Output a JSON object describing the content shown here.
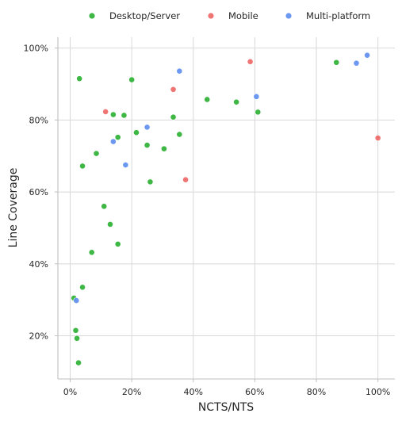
{
  "chart_data": {
    "type": "scatter",
    "xlabel": "NCTS/NTS",
    "ylabel": "Line Coverage",
    "xlim": [
      -0.04,
      1.055
    ],
    "ylim": [
      0.08,
      1.03
    ],
    "x_ticks": [
      {
        "value": 0.0,
        "label": "0%"
      },
      {
        "value": 0.2,
        "label": "20%"
      },
      {
        "value": 0.4,
        "label": "40%"
      },
      {
        "value": 0.6,
        "label": "60%"
      },
      {
        "value": 0.8,
        "label": "80%"
      },
      {
        "value": 1.0,
        "label": "100%"
      }
    ],
    "y_ticks": [
      {
        "value": 0.2,
        "label": "20%"
      },
      {
        "value": 0.4,
        "label": "40%"
      },
      {
        "value": 0.6,
        "label": "60%"
      },
      {
        "value": 0.8,
        "label": "80%"
      },
      {
        "value": 1.0,
        "label": "100%"
      }
    ],
    "grid": true,
    "legend_position": "top-center",
    "series": [
      {
        "name": "Desktop/Server",
        "color": "#2eb135",
        "points": [
          {
            "x": 0.03,
            "y": 0.915
          },
          {
            "x": 0.2,
            "y": 0.912
          },
          {
            "x": 0.14,
            "y": 0.815
          },
          {
            "x": 0.175,
            "y": 0.813
          },
          {
            "x": 0.335,
            "y": 0.808
          },
          {
            "x": 0.445,
            "y": 0.857
          },
          {
            "x": 0.54,
            "y": 0.85
          },
          {
            "x": 0.61,
            "y": 0.822
          },
          {
            "x": 0.865,
            "y": 0.96
          },
          {
            "x": 0.215,
            "y": 0.765
          },
          {
            "x": 0.155,
            "y": 0.752
          },
          {
            "x": 0.355,
            "y": 0.76
          },
          {
            "x": 0.25,
            "y": 0.73
          },
          {
            "x": 0.305,
            "y": 0.72
          },
          {
            "x": 0.085,
            "y": 0.707
          },
          {
            "x": 0.04,
            "y": 0.672
          },
          {
            "x": 0.26,
            "y": 0.628
          },
          {
            "x": 0.11,
            "y": 0.56
          },
          {
            "x": 0.13,
            "y": 0.51
          },
          {
            "x": 0.155,
            "y": 0.455
          },
          {
            "x": 0.07,
            "y": 0.432
          },
          {
            "x": 0.04,
            "y": 0.335
          },
          {
            "x": 0.012,
            "y": 0.305
          },
          {
            "x": 0.018,
            "y": 0.215
          },
          {
            "x": 0.022,
            "y": 0.193
          },
          {
            "x": 0.027,
            "y": 0.125
          }
        ]
      },
      {
        "name": "Mobile",
        "color": "#ee6868",
        "points": [
          {
            "x": 0.115,
            "y": 0.823
          },
          {
            "x": 0.335,
            "y": 0.885
          },
          {
            "x": 0.585,
            "y": 0.962
          },
          {
            "x": 0.375,
            "y": 0.634
          },
          {
            "x": 1.0,
            "y": 0.75
          }
        ]
      },
      {
        "name": "Multi-platform",
        "color": "#5f8ff1",
        "points": [
          {
            "x": 0.355,
            "y": 0.936
          },
          {
            "x": 0.965,
            "y": 0.98
          },
          {
            "x": 0.93,
            "y": 0.958
          },
          {
            "x": 0.605,
            "y": 0.865
          },
          {
            "x": 0.25,
            "y": 0.78
          },
          {
            "x": 0.14,
            "y": 0.74
          },
          {
            "x": 0.18,
            "y": 0.675
          },
          {
            "x": 0.02,
            "y": 0.298
          }
        ]
      }
    ]
  }
}
